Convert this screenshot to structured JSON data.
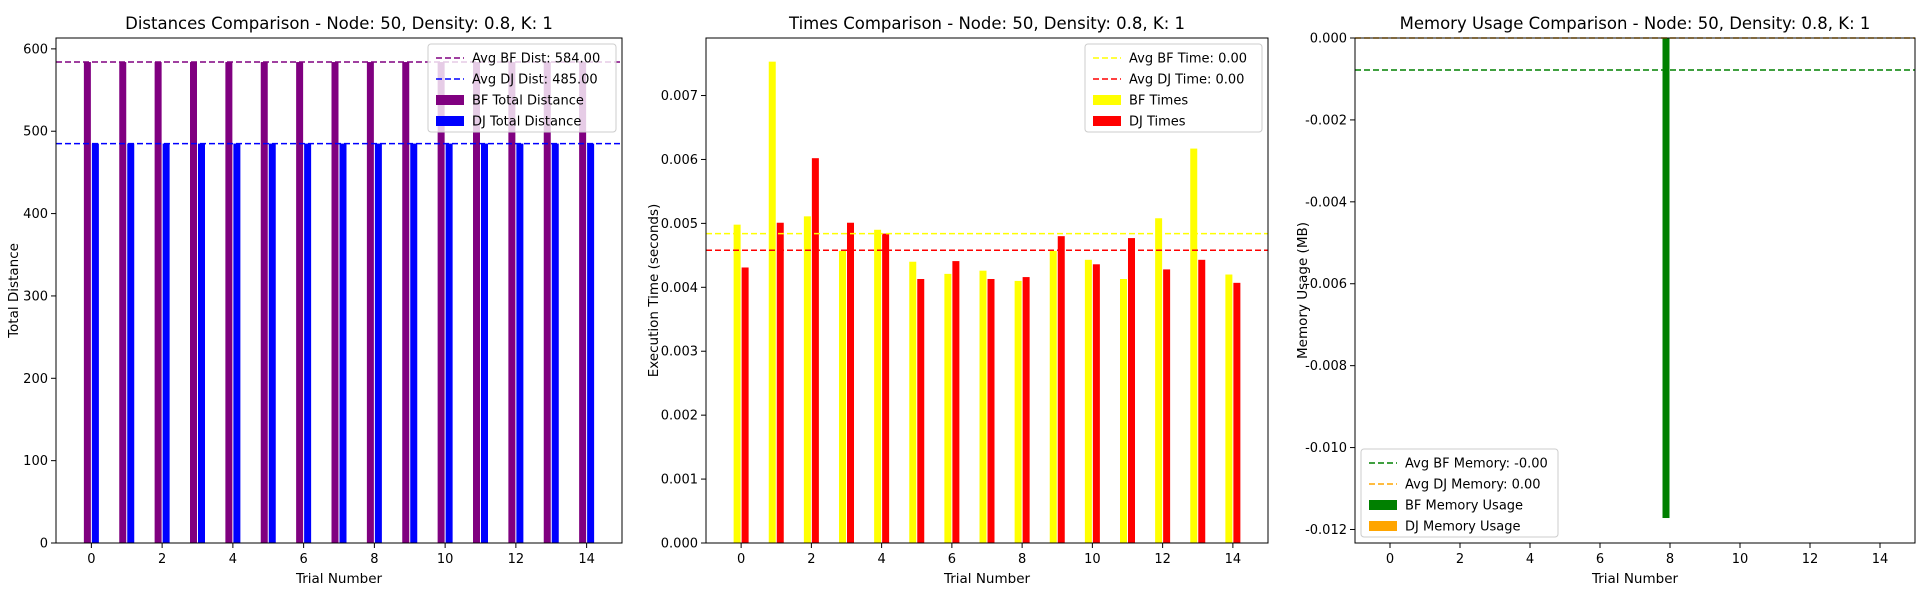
{
  "chart_data": [
    {
      "type": "bar",
      "title": "Distances Comparison - Node: 50, Density: 0.8, K: 1",
      "xlabel": "Trial Number",
      "ylabel": "Total Distance",
      "xlim": [
        -1.0,
        15.0
      ],
      "ylim": [
        0,
        613.2
      ],
      "xticks": [
        0,
        2,
        4,
        6,
        8,
        10,
        12,
        14
      ],
      "yticks": [
        0,
        100,
        200,
        300,
        400,
        500,
        600
      ],
      "x": [
        0,
        1,
        2,
        3,
        4,
        5,
        6,
        7,
        8,
        9,
        10,
        11,
        12,
        13,
        14
      ],
      "series": [
        {
          "name": "BF Total Distance",
          "color": "#800080",
          "values": [
            584,
            584,
            584,
            584,
            584,
            584,
            584,
            584,
            584,
            584,
            584,
            584,
            584,
            584,
            584
          ]
        },
        {
          "name": "DJ Total Distance",
          "color": "#0000ff",
          "values": [
            485,
            485,
            485,
            485,
            485,
            485,
            485,
            485,
            485,
            485,
            485,
            485,
            485,
            485,
            485
          ]
        }
      ],
      "hlines": [
        {
          "label": "Avg BF Dist: 584.00",
          "value": 584.0,
          "color": "#800080"
        },
        {
          "label": "Avg DJ Dist: 485.00",
          "value": 485.0,
          "color": "#0000ff"
        }
      ],
      "legend_position": "upper right"
    },
    {
      "type": "bar",
      "title": "Times Comparison - Node: 50, Density: 0.8, K: 1",
      "xlabel": "Trial Number",
      "ylabel": "Execution Time (seconds)",
      "xlim": [
        -1.0,
        15.0
      ],
      "ylim": [
        0,
        0.0079
      ],
      "xticks": [
        0,
        2,
        4,
        6,
        8,
        10,
        12,
        14
      ],
      "yticks": [
        0.0,
        0.001,
        0.002,
        0.003,
        0.004,
        0.005,
        0.006,
        0.007
      ],
      "ytick_decimals": 3,
      "x": [
        0,
        1,
        2,
        3,
        4,
        5,
        6,
        7,
        8,
        9,
        10,
        11,
        12,
        13,
        14
      ],
      "series": [
        {
          "name": "BF Times",
          "color": "#ffff00",
          "values": [
            0.00498,
            0.00753,
            0.00511,
            0.00457,
            0.0049,
            0.0044,
            0.00421,
            0.00426,
            0.0041,
            0.00457,
            0.00443,
            0.00413,
            0.00508,
            0.00617,
            0.0042
          ]
        },
        {
          "name": "DJ Times",
          "color": "#ff0000",
          "values": [
            0.00431,
            0.00501,
            0.00602,
            0.00501,
            0.00484,
            0.00413,
            0.00441,
            0.00413,
            0.00416,
            0.0048,
            0.00436,
            0.00477,
            0.00428,
            0.00443,
            0.00407
          ]
        }
      ],
      "hlines": [
        {
          "label": "Avg BF Time: 0.00",
          "value": 0.00484,
          "color": "#ffff00"
        },
        {
          "label": "Avg DJ Time: 0.00",
          "value": 0.00458,
          "color": "#ff0000"
        }
      ],
      "legend_position": "upper right"
    },
    {
      "type": "bar",
      "title": "Memory Usage Comparison - Node: 50, Density: 0.8, K: 1",
      "xlabel": "Trial Number",
      "ylabel": "Memory Usage (MB)",
      "xlim": [
        -1.0,
        15.0
      ],
      "ylim": [
        -0.01233,
        0.0
      ],
      "xticks": [
        0,
        2,
        4,
        6,
        8,
        10,
        12,
        14
      ],
      "yticks": [
        0.0,
        -0.002,
        -0.004,
        -0.006,
        -0.008,
        -0.01,
        -0.012
      ],
      "ytick_decimals": 3,
      "x": [
        0,
        1,
        2,
        3,
        4,
        5,
        6,
        7,
        8,
        9,
        10,
        11,
        12,
        13,
        14
      ],
      "series": [
        {
          "name": "BF Memory Usage",
          "color": "#008000",
          "values": [
            0,
            0,
            0,
            0,
            0,
            0,
            0,
            0,
            -0.01172,
            0,
            0,
            0,
            0,
            0,
            0
          ]
        },
        {
          "name": "DJ Memory Usage",
          "color": "#ffa500",
          "values": [
            0,
            0,
            0,
            0,
            0,
            0,
            0,
            0,
            0,
            0,
            0,
            0,
            0,
            0,
            0
          ]
        }
      ],
      "hlines": [
        {
          "label": "Avg BF Memory: -0.00",
          "value": -0.00078,
          "color": "#008000"
        },
        {
          "label": "Avg DJ Memory: 0.00",
          "value": 0.0,
          "color": "#ffa500"
        }
      ],
      "legend_position": "lower left"
    }
  ]
}
